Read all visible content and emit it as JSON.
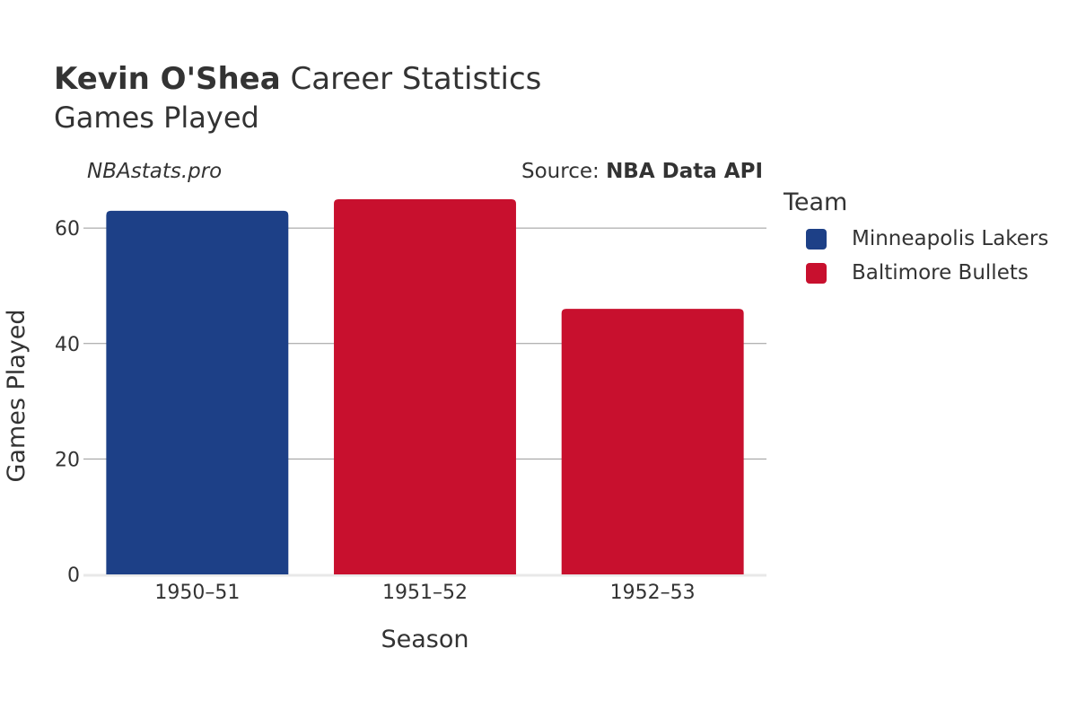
{
  "header": {
    "title_bold": "Kevin O'Shea",
    "title_rest": " Career Statistics",
    "subtitle": "Games Played",
    "watermark": "NBAstats.pro",
    "source_prefix": "Source: ",
    "source_name": "NBA Data API"
  },
  "legend": {
    "title": "Team",
    "items": [
      {
        "label": "Minneapolis Lakers",
        "color": "#1d4087"
      },
      {
        "label": "Baltimore Bullets",
        "color": "#c8102e"
      }
    ]
  },
  "chart_data": {
    "type": "bar",
    "categories": [
      "1950–51",
      "1951–52",
      "1952–53"
    ],
    "values": [
      63,
      65,
      46
    ],
    "bar_colors": [
      "#1d4087",
      "#c8102e",
      "#c8102e"
    ],
    "bar_teams": [
      "Minneapolis Lakers",
      "Baltimore Bullets",
      "Baltimore Bullets"
    ],
    "xlabel": "Season",
    "ylabel": "Games Played",
    "ylim": [
      0,
      65
    ],
    "yticks": [
      0,
      20,
      40,
      60
    ],
    "grid": true,
    "legend_position": "right"
  }
}
